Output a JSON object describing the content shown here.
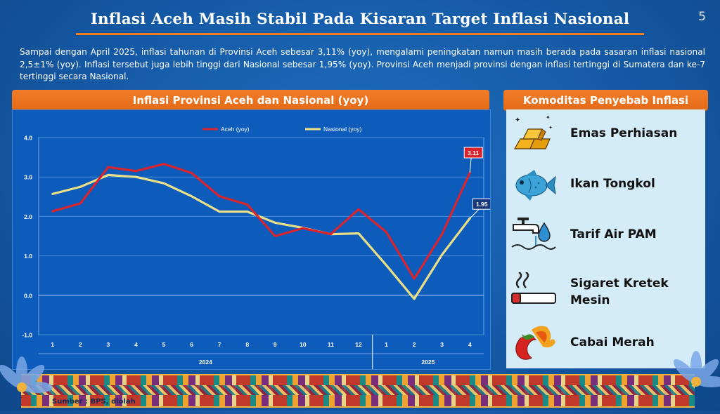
{
  "slide": {
    "title": "Inflasi Aceh Masih Stabil Pada Kisaran Target Inflasi Nasional",
    "page_number": "5",
    "summary": "Sampai dengan April 2025, inflasi tahunan di Provinsi Aceh sebesar 3,11% (yoy), mengalami peningkatan namun masih berada pada sasaran inflasi nasional 2,5±1% (yoy). Inflasi tersebut juga lebih tinggi dari Nasional sebesar 1,95% (yoy). Provinsi Aceh menjadi provinsi dengan inflasi tertinggi di Sumatera dan ke-7 tertinggi secara Nasional.",
    "source": "Sumber : BPS, diolah"
  },
  "chart_panel": {
    "header": "Inflasi Provinsi Aceh dan Nasional (yoy)"
  },
  "commodity_panel": {
    "header": "Komoditas Penyebab Inflasi",
    "items": [
      {
        "label": "Emas Perhiasan",
        "icon": "gold-bars-icon"
      },
      {
        "label": "Ikan Tongkol",
        "icon": "fish-icon"
      },
      {
        "label": "Tarif Air PAM",
        "icon": "water-tap-icon"
      },
      {
        "label": "Sigaret Kretek Mesin",
        "icon": "cigarette-icon"
      },
      {
        "label": "Cabai Merah",
        "icon": "chili-icon"
      }
    ]
  },
  "chart_data": {
    "type": "line",
    "x": [
      "1",
      "2",
      "3",
      "4",
      "5",
      "6",
      "7",
      "8",
      "9",
      "10",
      "11",
      "12",
      "1",
      "2",
      "3",
      "4"
    ],
    "x_groups": [
      {
        "label": "2024",
        "count": 12
      },
      {
        "label": "2025",
        "count": 4
      }
    ],
    "yticks": [
      "4.0",
      "3.0",
      "2.0",
      "1.0",
      "0.0",
      "-1.0"
    ],
    "ylim": [
      -1.0,
      4.0
    ],
    "grid": true,
    "legend_position": "top",
    "series": [
      {
        "name": "Aceh (yoy)",
        "color": "#d9232d",
        "values": [
          2.13,
          2.33,
          3.25,
          3.15,
          3.33,
          3.1,
          2.51,
          2.3,
          1.5,
          1.7,
          1.55,
          2.18,
          1.6,
          0.42,
          1.55,
          3.11
        ]
      },
      {
        "name": "Nasional (yoy)",
        "color": "#ece087",
        "values": [
          2.57,
          2.75,
          3.05,
          3.0,
          2.84,
          2.51,
          2.12,
          2.12,
          1.84,
          1.71,
          1.55,
          1.57,
          0.76,
          -0.09,
          1.03,
          1.95
        ]
      }
    ],
    "end_labels": [
      {
        "series": "Aceh (yoy)",
        "text": "3.11",
        "color": "#d9232d"
      },
      {
        "series": "Nasional (yoy)",
        "text": "1.95",
        "color": "#17377a"
      }
    ]
  }
}
